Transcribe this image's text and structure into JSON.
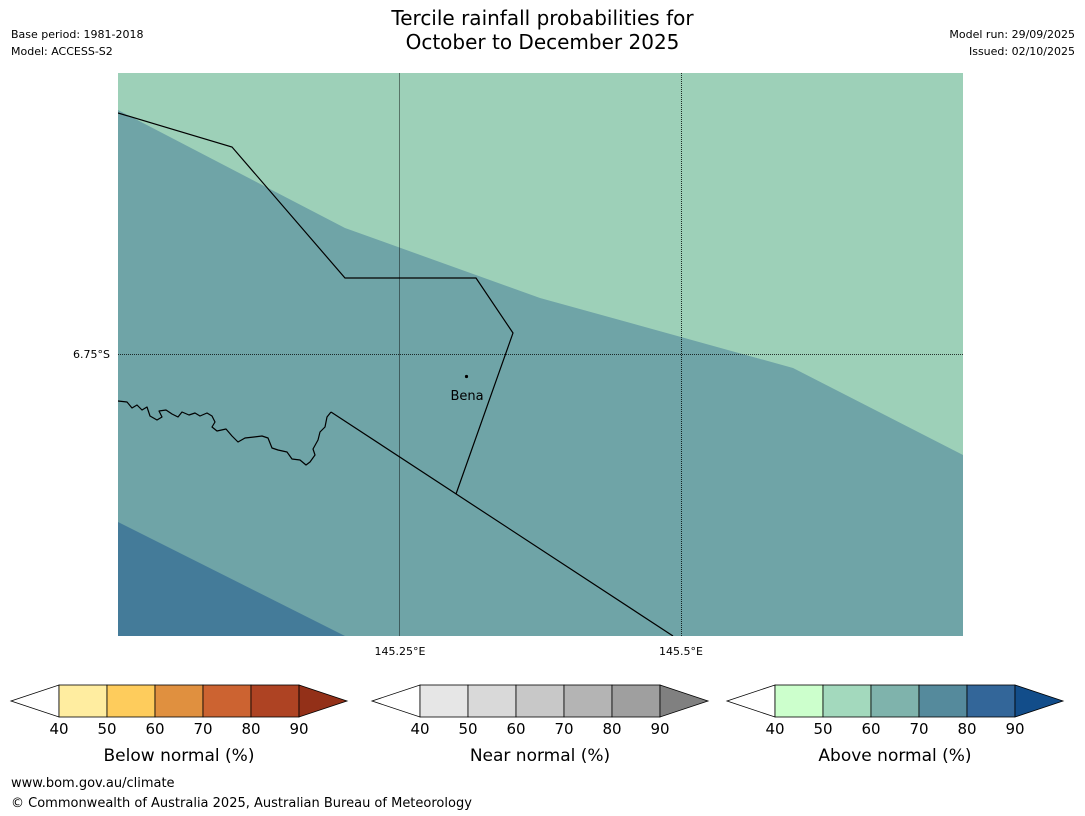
{
  "header": {
    "title_line1": "Tercile rainfall probabilities for",
    "title_line2": "October to December 2025",
    "base_period": "Base period: 1981-2018",
    "model": "Model: ACCESS-S2",
    "model_run": "Model run: 29/09/2025",
    "issued": "Issued: 02/10/2025"
  },
  "map": {
    "lat_label": "6.75°S",
    "lon_labels": [
      "145.25°E",
      "145.5°E"
    ],
    "place": {
      "name": "Bena"
    },
    "colors": {
      "above_50_60": "#9dd0b8",
      "above_60_70": "#6fa4a7",
      "above_70_80": "#447b99"
    }
  },
  "legends": [
    {
      "title": "Below normal (%)",
      "ticks": [
        "40",
        "50",
        "60",
        "70",
        "80",
        "90"
      ],
      "colors": [
        "#ffffff",
        "#ffeda0",
        "#fecc5c",
        "#e0903f",
        "#cc6331",
        "#ae4323",
        "#933018"
      ]
    },
    {
      "title": "Near normal (%)",
      "ticks": [
        "40",
        "50",
        "60",
        "70",
        "80",
        "90"
      ],
      "colors": [
        "#ffffff",
        "#e6e6e6",
        "#d9d9d9",
        "#c8c8c8",
        "#b4b4b4",
        "#9f9f9f",
        "#808080"
      ]
    },
    {
      "title": "Above normal (%)",
      "ticks": [
        "40",
        "50",
        "60",
        "70",
        "80",
        "90"
      ],
      "colors": [
        "#ffffff",
        "#ccffcc",
        "#a3d9bd",
        "#7fb3ac",
        "#558a9c",
        "#336699",
        "#124d8a"
      ]
    }
  ],
  "footer": {
    "url": "www.bom.gov.au/climate",
    "copyright": "© Commonwealth of Australia 2025, Australian Bureau of Meteorology"
  }
}
